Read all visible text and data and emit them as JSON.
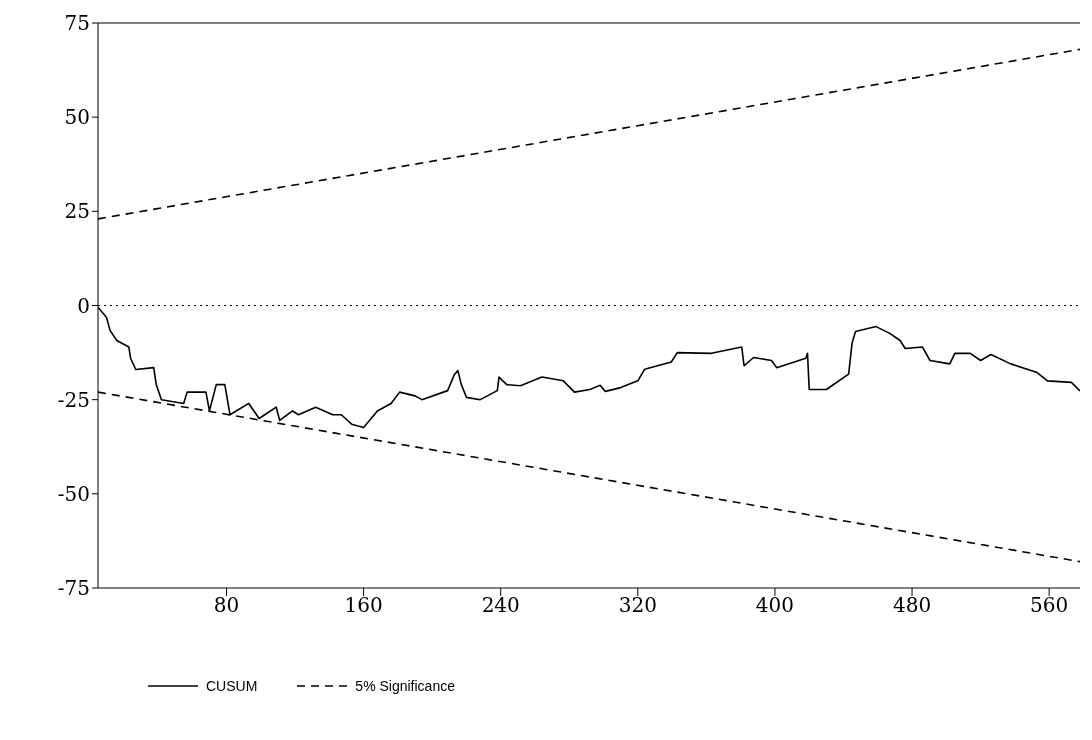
{
  "chart_data": {
    "type": "line",
    "xlim": [
      5,
      578
    ],
    "ylim": [
      -75,
      75
    ],
    "xticks": [
      80,
      160,
      240,
      320,
      400,
      480,
      560
    ],
    "yticks": [
      -75,
      -50,
      -25,
      0,
      25,
      50,
      75
    ],
    "grid": false,
    "legend": "bottom left",
    "marker": "none",
    "ref_lines": [
      {
        "axis": "y",
        "value": 0,
        "color": "#000000",
        "line_style": "dotted"
      }
    ],
    "series": [
      {
        "name": "CUSUM",
        "color": "#000000",
        "line_style": "solid",
        "x": [
          5,
          10,
          12,
          16,
          23,
          24,
          27,
          37.5,
          39,
          42,
          55,
          57,
          68,
          70,
          74,
          79,
          82,
          93,
          99,
          109,
          111,
          118.5,
          122,
          132,
          142,
          147,
          153,
          160,
          168,
          176,
          181,
          190,
          194,
          209,
          213,
          215,
          217,
          220,
          228,
          238,
          239,
          243.5,
          251.5,
          264,
          276.5,
          283,
          292,
          298,
          301,
          310,
          320,
          324,
          339.5,
          343,
          363,
          380.6,
          382,
          387.5,
          398,
          401,
          418,
          419,
          420,
          430,
          443,
          445,
          447,
          459,
          467,
          473,
          476,
          486,
          490.5,
          502,
          505,
          514,
          520,
          526,
          537.6,
          553,
          559,
          573,
          578
        ],
        "values": [
          -0.5,
          -3.2,
          -6.6,
          -9.3,
          -11,
          -14,
          -17,
          -16.5,
          -21,
          -25,
          -26,
          -23,
          -23,
          -28,
          -21,
          -21,
          -29,
          -26,
          -30,
          -27,
          -30.5,
          -28,
          -29,
          -27,
          -29,
          -29,
          -31.5,
          -32.4,
          -28,
          -26,
          -23,
          -24,
          -25,
          -22.6,
          -18.3,
          -17.3,
          -21,
          -24.4,
          -25,
          -22.6,
          -19,
          -21,
          -21.3,
          -19,
          -20,
          -23,
          -22.3,
          -21.2,
          -22.8,
          -21.8,
          -20,
          -16.9,
          -15,
          -12.5,
          -12.7,
          -11,
          -16,
          -13.8,
          -14.6,
          -16.5,
          -14,
          -12.7,
          -22.3,
          -22.3,
          -18.2,
          -10,
          -6.9,
          -5.6,
          -7.4,
          -9.3,
          -11.4,
          -11,
          -14.6,
          -15.5,
          -12.7,
          -12.7,
          -14.6,
          -13,
          -15.5,
          -17.8,
          -20,
          -20.4,
          -22.7
        ]
      },
      {
        "name": "5% Significance",
        "color": "#000000",
        "line_style": "dashed",
        "x": [
          5,
          578
        ],
        "values": [
          23,
          68
        ]
      },
      {
        "color": "#000000",
        "line_style": "dashed",
        "x": [
          5,
          578
        ],
        "values": [
          -23,
          -68
        ]
      }
    ]
  }
}
